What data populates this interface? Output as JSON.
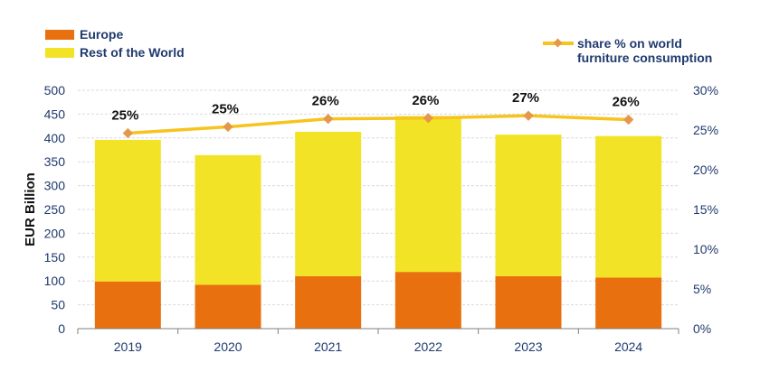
{
  "chart_data": {
    "type": "bar",
    "categories": [
      "2019",
      "2020",
      "2021",
      "2022",
      "2023",
      "2024"
    ],
    "series": [
      {
        "name": "Europe",
        "values": [
          99,
          92,
          110,
          119,
          110,
          107
        ],
        "color": "#e8700e"
      },
      {
        "name": "Rest of the World",
        "values": [
          297,
          272,
          303,
          327,
          297,
          297
        ],
        "color": "#f2e326"
      }
    ],
    "line_series": {
      "name": "share % on world furniture consumption",
      "values": [
        24.6,
        25.4,
        26.4,
        26.5,
        26.8,
        26.3
      ],
      "labels": [
        "25%",
        "25%",
        "26%",
        "26%",
        "27%",
        "26%"
      ],
      "color": "#f7c31f",
      "marker_color": "#e5984a"
    },
    "ylabel": "EUR Billion",
    "ylim": [
      0,
      500
    ],
    "yticks": [
      "0",
      "50",
      "100",
      "150",
      "200",
      "250",
      "300",
      "350",
      "400",
      "450",
      "500"
    ],
    "y2lim": [
      0,
      30
    ],
    "y2ticks": [
      "0%",
      "5%",
      "10%",
      "15%",
      "20%",
      "25%",
      "30%"
    ],
    "stacked": true,
    "grid": true,
    "legend": {
      "placement": "top",
      "europe_label": "Europe",
      "rest_label": "Rest of the World",
      "line_label_1": "share % on world",
      "line_label_2": "furniture consumption"
    }
  }
}
